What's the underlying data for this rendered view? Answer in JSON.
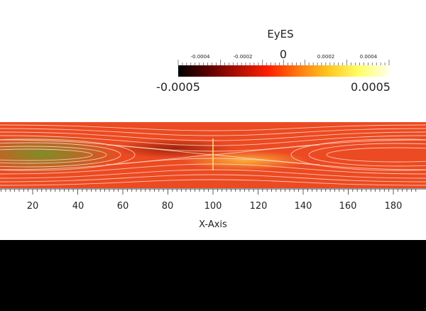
{
  "colorbar": {
    "title": "EyES",
    "center_label": "0",
    "min_label": "-0.0005",
    "max_label": "0.0005",
    "minor_tick_labels": [
      "-0.0004",
      "-0.0002",
      "0.0002",
      "0.0004"
    ],
    "colormap": [
      "#000000",
      "#5a0000",
      "#b01000",
      "#ff2000",
      "#ff7a10",
      "#ffc820",
      "#ffff66",
      "#ffffe8"
    ]
  },
  "x_axis": {
    "title": "X-Axis",
    "tick_labels": [
      "20",
      "40",
      "60",
      "80",
      "100",
      "120",
      "140",
      "160",
      "180"
    ]
  },
  "field": {
    "base_color": "#ec4a22",
    "streamline_color": "#ffd9c8"
  }
}
